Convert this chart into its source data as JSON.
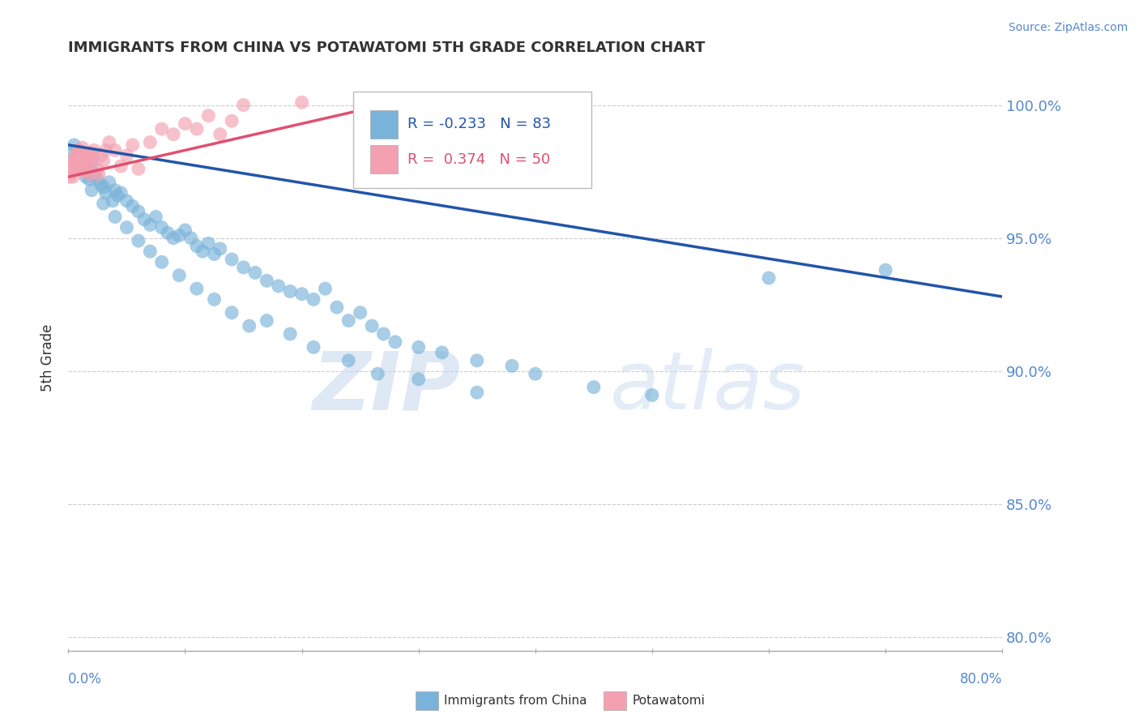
{
  "title": "IMMIGRANTS FROM CHINA VS POTAWATOMI 5TH GRADE CORRELATION CHART",
  "source_text": "Source: ZipAtlas.com",
  "ylabel": "5th Grade",
  "xlim": [
    0.0,
    80.0
  ],
  "ylim": [
    79.5,
    101.5
  ],
  "yticks": [
    80.0,
    85.0,
    90.0,
    95.0,
    100.0
  ],
  "ytick_labels": [
    "80.0%",
    "85.0%",
    "90.0%",
    "95.0%",
    "100.0%"
  ],
  "blue_R": -0.233,
  "blue_N": 83,
  "pink_R": 0.374,
  "pink_N": 50,
  "blue_color": "#7ab3d9",
  "pink_color": "#f4a0b0",
  "blue_line_color": "#2255aa",
  "pink_line_color": "#e05070",
  "legend_blue_label": "Immigrants from China",
  "legend_pink_label": "Potawatomi",
  "watermark_zip": "ZIP",
  "watermark_atlas": "atlas",
  "blue_scatter_x": [
    0.3,
    0.5,
    0.7,
    0.9,
    1.0,
    1.2,
    1.4,
    1.5,
    1.6,
    1.8,
    2.0,
    2.2,
    2.5,
    2.8,
    3.0,
    3.2,
    3.5,
    3.8,
    4.0,
    4.2,
    4.5,
    5.0,
    5.5,
    6.0,
    6.5,
    7.0,
    7.5,
    8.0,
    8.5,
    9.0,
    9.5,
    10.0,
    10.5,
    11.0,
    11.5,
    12.0,
    12.5,
    13.0,
    14.0,
    15.0,
    16.0,
    17.0,
    18.0,
    19.0,
    20.0,
    21.0,
    22.0,
    23.0,
    24.0,
    25.0,
    26.0,
    27.0,
    28.0,
    30.0,
    32.0,
    35.0,
    38.0,
    40.0,
    45.0,
    50.0,
    1.5,
    2.0,
    3.0,
    4.0,
    5.0,
    6.0,
    7.0,
    8.0,
    9.5,
    11.0,
    12.5,
    14.0,
    15.5,
    17.0,
    19.0,
    21.0,
    24.0,
    26.5,
    30.0,
    35.0,
    60.0,
    70.0,
    1.8
  ],
  "blue_scatter_y": [
    98.2,
    98.5,
    98.0,
    97.8,
    98.1,
    97.9,
    97.6,
    98.0,
    97.7,
    97.5,
    97.8,
    97.4,
    97.2,
    97.0,
    96.9,
    96.7,
    97.1,
    96.4,
    96.8,
    96.6,
    96.7,
    96.4,
    96.2,
    96.0,
    95.7,
    95.5,
    95.8,
    95.4,
    95.2,
    95.0,
    95.1,
    95.3,
    95.0,
    94.7,
    94.5,
    94.8,
    94.4,
    94.6,
    94.2,
    93.9,
    93.7,
    93.4,
    93.2,
    93.0,
    92.9,
    92.7,
    93.1,
    92.4,
    91.9,
    92.2,
    91.7,
    91.4,
    91.1,
    90.9,
    90.7,
    90.4,
    90.2,
    89.9,
    89.4,
    89.1,
    97.3,
    96.8,
    96.3,
    95.8,
    95.4,
    94.9,
    94.5,
    94.1,
    93.6,
    93.1,
    92.7,
    92.2,
    91.7,
    91.9,
    91.4,
    90.9,
    90.4,
    89.9,
    89.7,
    89.2,
    93.5,
    93.8,
    97.2
  ],
  "pink_scatter_x": [
    0.1,
    0.2,
    0.3,
    0.4,
    0.5,
    0.6,
    0.7,
    0.8,
    0.9,
    1.0,
    1.1,
    1.2,
    1.3,
    1.4,
    1.5,
    1.6,
    1.7,
    1.8,
    1.9,
    2.0,
    2.2,
    2.5,
    2.8,
    3.0,
    3.5,
    4.0,
    5.0,
    6.0,
    7.0,
    8.0,
    9.0,
    10.0,
    11.0,
    12.0,
    13.0,
    14.0,
    15.0,
    20.0,
    25.0,
    30.0,
    0.4,
    0.6,
    1.0,
    1.3,
    1.7,
    2.1,
    2.6,
    3.2,
    4.5,
    5.5
  ],
  "pink_scatter_y": [
    97.3,
    97.6,
    97.9,
    97.5,
    97.8,
    98.1,
    97.7,
    98.0,
    98.3,
    98.2,
    97.9,
    98.4,
    97.6,
    98.0,
    97.8,
    97.5,
    98.1,
    98.2,
    97.4,
    98.0,
    98.3,
    97.6,
    98.1,
    97.9,
    98.6,
    98.3,
    98.1,
    97.6,
    98.6,
    99.1,
    98.9,
    99.3,
    99.1,
    99.6,
    98.9,
    99.4,
    100.0,
    100.1,
    99.6,
    100.1,
    97.3,
    97.9,
    98.2,
    97.5,
    97.8,
    98.1,
    97.4,
    98.3,
    97.7,
    98.5
  ],
  "blue_trend_x": [
    0.0,
    80.0
  ],
  "blue_trend_y": [
    98.5,
    92.8
  ],
  "pink_trend_x": [
    0.0,
    30.0
  ],
  "pink_trend_y": [
    97.3,
    100.3
  ],
  "grid_color": "#cccccc",
  "background_color": "#ffffff",
  "title_color": "#333333",
  "axis_label_color": "#5588cc",
  "tick_color": "#5588cc"
}
